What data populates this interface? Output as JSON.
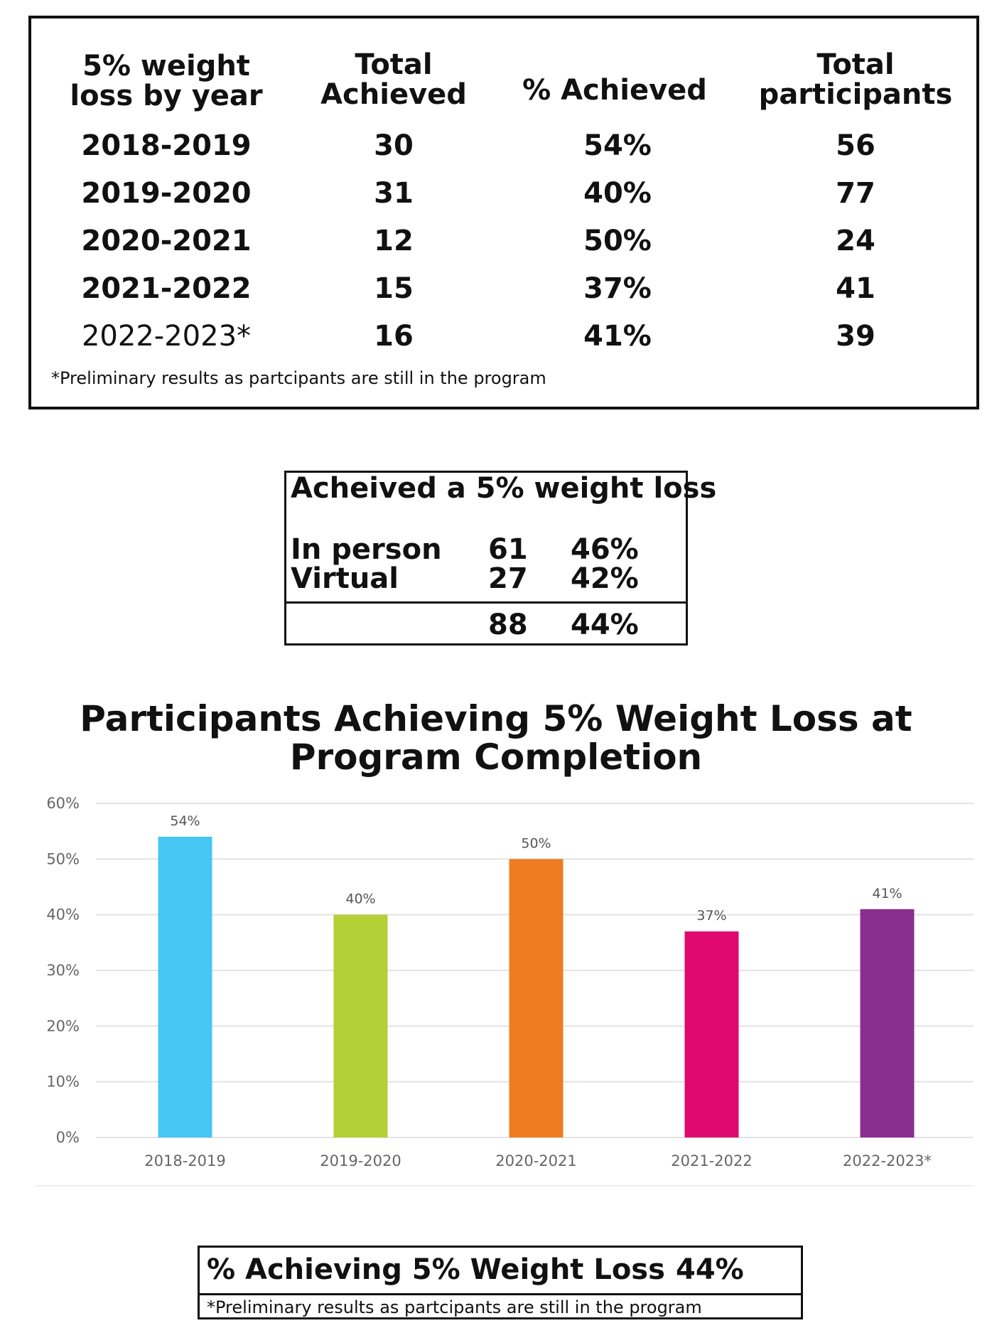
{
  "table": {
    "headers": {
      "year": [
        "5% weight",
        "loss by year"
      ],
      "total_achieved": [
        "Total",
        "Achieved"
      ],
      "pct_achieved": "% Achieved",
      "total_participants": [
        "Total",
        "participants"
      ]
    },
    "rows": [
      {
        "year": "2018-2019",
        "achieved": "30",
        "pct": "54%",
        "participants": "56"
      },
      {
        "year": "2019-2020",
        "achieved": "31",
        "pct": "40%",
        "participants": "77"
      },
      {
        "year": "2020-2021",
        "achieved": "12",
        "pct": "50%",
        "participants": "24"
      },
      {
        "year": "2021-2022",
        "achieved": "15",
        "pct": "37%",
        "participants": "41"
      },
      {
        "year": "2022-2023*",
        "achieved": "16",
        "pct": "41%",
        "participants": "39"
      }
    ],
    "note": "*Preliminary results as partcipants are still in the program"
  },
  "summary": {
    "title": "Acheived a 5% weight loss",
    "rows": [
      {
        "label": "In person",
        "count": "61",
        "pct": "46%"
      },
      {
        "label": "Virtual",
        "count": "27",
        "pct": "42%"
      }
    ],
    "total": {
      "count": "88",
      "pct": "44%"
    }
  },
  "chart_data": {
    "type": "bar",
    "title": [
      "Participants Achieving 5% Weight Loss at",
      "Program Completion"
    ],
    "categories": [
      "2018-2019",
      "2019-2020",
      "2020-2021",
      "2021-2022",
      "2022-2023*"
    ],
    "values": [
      54,
      40,
      50,
      37,
      41
    ],
    "data_labels": [
      "54%",
      "40%",
      "50%",
      "37%",
      "41%"
    ],
    "colors": [
      "#45c6f3",
      "#b5cf36",
      "#f07c22",
      "#e0096e",
      "#8b2f8f"
    ],
    "ylim": [
      0,
      60
    ],
    "yticks": [
      0,
      10,
      20,
      30,
      40,
      50,
      60
    ],
    "ytick_labels": [
      "0%",
      "10%",
      "20%",
      "30%",
      "40%",
      "50%",
      "60%"
    ],
    "grid": true,
    "xlabel": "",
    "ylabel": ""
  },
  "bottom": {
    "label": "% Achieving 5% Weight Loss",
    "value": "44%",
    "note": "*Preliminary results as partcipants are still in the program"
  }
}
